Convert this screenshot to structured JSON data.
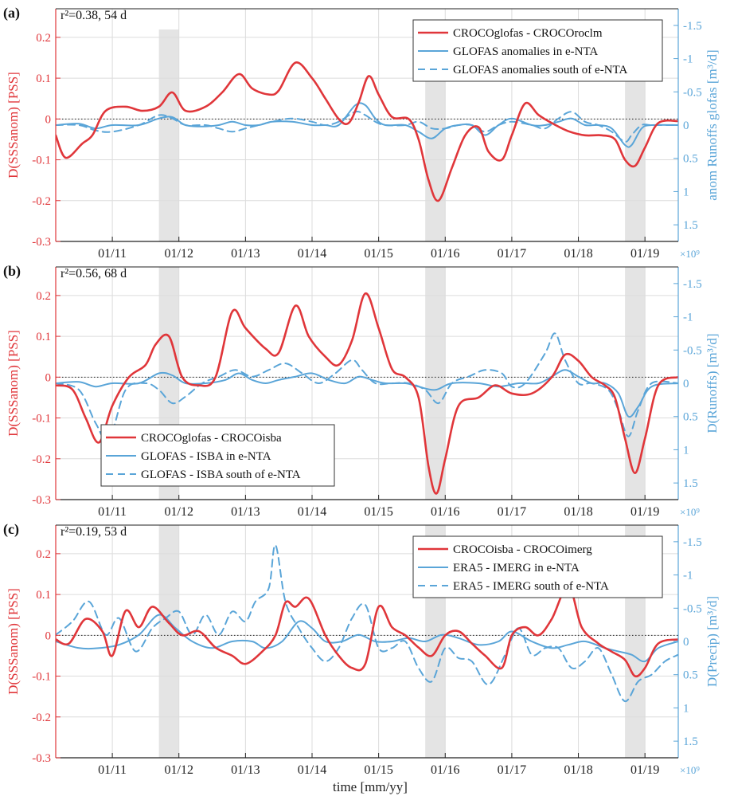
{
  "colors": {
    "red": "#e0363a",
    "blue": "#5aa5d8",
    "shade": "#e4e4e4",
    "grid": "#dcdcdc",
    "axis": "#222222"
  },
  "time_axis": {
    "xlabel": "time [mm/yy]",
    "tick_labels": [
      "01/11",
      "01/12",
      "01/13",
      "01/14",
      "01/15",
      "01/16",
      "01/17",
      "01/18",
      "01/19"
    ],
    "shaded_periods": [
      [
        2011.7,
        2012.0
      ],
      [
        2015.7,
        2016.0
      ],
      [
        2018.7,
        2019.0
      ]
    ],
    "xlim": [
      2010.15,
      2019.5
    ]
  },
  "chart_data": [
    {
      "type": "line",
      "panel_label": "(a)",
      "stats_label": "r²=0.38, 54 d",
      "ylabel_left": "D(SSSanom) [PSS]",
      "ylabel_right": "anom Runoffs glofas [m³/d]",
      "exponent_label": "×10⁹",
      "ylim_left": [
        -0.3,
        0.27
      ],
      "ylim_right_reversed": [
        1.75,
        -1.75
      ],
      "yticks_left": [
        0.2,
        0.1,
        0,
        -0.1,
        -0.2,
        -0.3
      ],
      "yticks_left_labels": [
        "0.2",
        "0.1",
        "0",
        "-0.1",
        "-0.2",
        "-0.3"
      ],
      "yticks_right": [
        -1.5,
        -1,
        -0.5,
        0,
        0.5,
        1,
        1.5
      ],
      "yticks_right_labels": [
        "-1.5",
        "-1",
        "-0.5",
        "0",
        "0.5",
        "1",
        "1.5"
      ],
      "legend_position": "top-right",
      "series": [
        {
          "name": "CROCOglofas - CROCOroclm",
          "axis": "left",
          "style": "solid",
          "color": "red",
          "x": [
            2010.15,
            2010.3,
            2010.55,
            2010.7,
            2010.9,
            2011.2,
            2011.45,
            2011.7,
            2011.9,
            2012.1,
            2012.4,
            2012.65,
            2012.9,
            2013.1,
            2013.35,
            2013.5,
            2013.75,
            2014.0,
            2014.2,
            2014.4,
            2014.55,
            2014.7,
            2014.85,
            2015.0,
            2015.2,
            2015.45,
            2015.6,
            2015.75,
            2015.9,
            2016.1,
            2016.3,
            2016.5,
            2016.65,
            2016.85,
            2017.0,
            2017.2,
            2017.4,
            2017.6,
            2017.85,
            2018.1,
            2018.35,
            2018.55,
            2018.7,
            2018.85,
            2019.0,
            2019.2,
            2019.5
          ],
          "y": [
            -0.04,
            -0.095,
            -0.06,
            -0.04,
            0.02,
            0.03,
            0.02,
            0.03,
            0.065,
            0.02,
            0.03,
            0.065,
            0.11,
            0.075,
            0.06,
            0.07,
            0.138,
            0.1,
            0.05,
            0.0,
            -0.01,
            0.04,
            0.105,
            0.06,
            0.005,
            0.0,
            -0.05,
            -0.15,
            -0.2,
            -0.12,
            -0.04,
            -0.02,
            -0.08,
            -0.1,
            -0.04,
            0.038,
            0.01,
            -0.01,
            -0.03,
            -0.04,
            -0.04,
            -0.05,
            -0.1,
            -0.115,
            -0.07,
            -0.01,
            -0.005
          ]
        },
        {
          "name": "GLOFAS anomalies in e-NTA",
          "axis": "right",
          "style": "solid",
          "color": "blue",
          "x": [
            2010.15,
            2010.5,
            2010.75,
            2011.0,
            2011.4,
            2011.7,
            2011.9,
            2012.1,
            2012.35,
            2012.6,
            2012.8,
            2013.0,
            2013.2,
            2013.4,
            2013.7,
            2014.0,
            2014.2,
            2014.4,
            2014.65,
            2014.8,
            2014.95,
            2015.1,
            2015.4,
            2015.6,
            2015.8,
            2016.0,
            2016.2,
            2016.4,
            2016.6,
            2016.8,
            2017.0,
            2017.3,
            2017.5,
            2017.7,
            2017.9,
            2018.1,
            2018.3,
            2018.5,
            2018.7,
            2018.8,
            2018.95,
            2019.1,
            2019.5
          ],
          "y": [
            0,
            -0.02,
            0.05,
            0,
            0,
            -0.1,
            -0.12,
            0,
            0.02,
            0,
            -0.05,
            0,
            0,
            -0.05,
            -0.05,
            0,
            0,
            0,
            -0.3,
            -0.3,
            -0.1,
            0,
            0,
            0.1,
            0.2,
            0.05,
            0,
            0,
            0.15,
            0,
            -0.1,
            0,
            0,
            -0.05,
            -0.1,
            0,
            0,
            0.05,
            0.3,
            0.3,
            0.05,
            0,
            0
          ]
        },
        {
          "name": "GLOFAS anomalies south of e-NTA",
          "axis": "right",
          "style": "dashed",
          "color": "blue",
          "x": [
            2010.15,
            2010.5,
            2010.75,
            2011.0,
            2011.4,
            2011.7,
            2011.9,
            2012.1,
            2012.4,
            2012.6,
            2012.8,
            2013.0,
            2013.2,
            2013.4,
            2013.7,
            2014.0,
            2014.2,
            2014.4,
            2014.65,
            2014.8,
            2014.95,
            2015.1,
            2015.4,
            2015.6,
            2015.8,
            2016.0,
            2016.2,
            2016.4,
            2016.6,
            2016.8,
            2017.0,
            2017.3,
            2017.5,
            2017.7,
            2017.9,
            2018.1,
            2018.3,
            2018.5,
            2018.7,
            2018.8,
            2018.95,
            2019.1,
            2019.5
          ],
          "y": [
            0,
            0,
            0.08,
            0.1,
            0,
            -0.15,
            -0.1,
            0,
            0,
            0.05,
            0.1,
            0.05,
            0,
            -0.05,
            -0.1,
            -0.05,
            0,
            -0.05,
            -0.2,
            -0.15,
            -0.05,
            0,
            0,
            -0.05,
            0.05,
            0.05,
            0,
            0,
            0.1,
            0,
            -0.05,
            0,
            0.05,
            -0.1,
            -0.2,
            -0.05,
            0,
            0.1,
            0.25,
            0.15,
            0,
            0,
            0
          ]
        }
      ]
    },
    {
      "type": "line",
      "panel_label": "(b)",
      "stats_label": "r²=0.56, 68 d",
      "ylabel_left": "D(SSSanom) [PSS]",
      "ylabel_right": "D(Runoffs) [m³/d]",
      "exponent_label": "×10⁹",
      "ylim_left": [
        -0.3,
        0.27
      ],
      "ylim_right_reversed": [
        1.75,
        -1.75
      ],
      "yticks_left": [
        0.2,
        0.1,
        0,
        -0.1,
        -0.2,
        -0.3
      ],
      "yticks_left_labels": [
        "0.2",
        "0.1",
        "0",
        "-0.1",
        "-0.2",
        "-0.3"
      ],
      "yticks_right": [
        -1.5,
        -1,
        -0.5,
        0,
        0.5,
        1,
        1.5
      ],
      "yticks_right_labels": [
        "-1.5",
        "-1",
        "-0.5",
        "0",
        "0.5",
        "1",
        "1.5"
      ],
      "legend_position": "bottom-left",
      "series": [
        {
          "name": "CROCOglofas - CROCOisba",
          "axis": "left",
          "style": "solid",
          "color": "red",
          "x": [
            2010.15,
            2010.4,
            2010.6,
            2010.8,
            2011.0,
            2011.25,
            2011.5,
            2011.65,
            2011.85,
            2012.05,
            2012.3,
            2012.55,
            2012.8,
            2013.0,
            2013.3,
            2013.5,
            2013.75,
            2013.95,
            2014.2,
            2014.4,
            2014.6,
            2014.8,
            2015.0,
            2015.2,
            2015.4,
            2015.6,
            2015.75,
            2015.87,
            2016.0,
            2016.2,
            2016.5,
            2016.75,
            2017.0,
            2017.3,
            2017.6,
            2017.8,
            2018.0,
            2018.2,
            2018.4,
            2018.55,
            2018.7,
            2018.85,
            2019.0,
            2019.2,
            2019.5
          ],
          "y": [
            -0.02,
            -0.03,
            -0.1,
            -0.16,
            -0.07,
            0.0,
            0.03,
            0.08,
            0.1,
            0.0,
            -0.02,
            0.0,
            0.16,
            0.12,
            0.07,
            0.06,
            0.175,
            0.1,
            0.05,
            0.03,
            0.09,
            0.205,
            0.12,
            0.02,
            0.0,
            -0.05,
            -0.22,
            -0.285,
            -0.2,
            -0.07,
            -0.05,
            -0.02,
            -0.04,
            -0.04,
            0.0,
            0.055,
            0.04,
            0.0,
            -0.02,
            -0.05,
            -0.15,
            -0.235,
            -0.15,
            -0.02,
            0.0
          ]
        },
        {
          "name": "GLOFAS - ISBA in e-NTA",
          "axis": "right",
          "style": "solid",
          "color": "blue",
          "x": [
            2010.15,
            2010.5,
            2010.75,
            2011.0,
            2011.4,
            2011.7,
            2011.9,
            2012.1,
            2012.4,
            2012.7,
            2012.9,
            2013.1,
            2013.3,
            2013.5,
            2013.75,
            2014.0,
            2014.25,
            2014.5,
            2014.7,
            2014.9,
            2015.1,
            2015.4,
            2015.6,
            2015.85,
            2016.1,
            2016.5,
            2016.8,
            2017.1,
            2017.4,
            2017.6,
            2017.8,
            2018.0,
            2018.2,
            2018.4,
            2018.6,
            2018.75,
            2018.9,
            2019.1,
            2019.5
          ],
          "y": [
            0,
            -0.02,
            0.05,
            0,
            0,
            -0.15,
            -0.12,
            0,
            0,
            -0.05,
            -0.15,
            -0.05,
            0,
            -0.05,
            -0.1,
            -0.15,
            -0.05,
            0,
            -0.1,
            -0.05,
            0,
            0,
            0.05,
            0.1,
            0,
            0,
            0.05,
            0,
            0,
            -0.1,
            -0.2,
            -0.1,
            0,
            0,
            0.15,
            0.5,
            0.35,
            0.05,
            0
          ]
        },
        {
          "name": "GLOFAS - ISBA south of e-NTA",
          "axis": "right",
          "style": "dashed",
          "color": "blue",
          "x": [
            2010.15,
            2010.5,
            2010.75,
            2010.95,
            2011.2,
            2011.5,
            2011.7,
            2011.9,
            2012.1,
            2012.35,
            2012.6,
            2012.85,
            2013.1,
            2013.35,
            2013.6,
            2013.85,
            2014.1,
            2014.35,
            2014.6,
            2014.75,
            2014.95,
            2015.2,
            2015.45,
            2015.7,
            2015.9,
            2016.1,
            2016.35,
            2016.6,
            2016.85,
            2017.0,
            2017.2,
            2017.5,
            2017.65,
            2017.8,
            2018.0,
            2018.2,
            2018.45,
            2018.6,
            2018.75,
            2018.9,
            2019.1,
            2019.5
          ],
          "y": [
            0,
            0.1,
            0.6,
            0.85,
            0.1,
            0,
            0.1,
            0.3,
            0.2,
            0,
            -0.1,
            -0.2,
            -0.1,
            -0.2,
            -0.3,
            -0.15,
            0,
            -0.15,
            -0.35,
            -0.2,
            0,
            0,
            0,
            0.1,
            0.3,
            0,
            -0.1,
            -0.2,
            -0.15,
            0.05,
            0,
            -0.45,
            -0.75,
            -0.35,
            0,
            0,
            0.1,
            0.4,
            0.8,
            0.4,
            0,
            0
          ]
        }
      ]
    },
    {
      "type": "line",
      "panel_label": "(c)",
      "stats_label": "r²=0.19, 53 d",
      "ylabel_left": "D(SSSanom) [PSS]",
      "ylabel_right": "D(Precip) [m³/d]",
      "exponent_label": "×10⁹",
      "ylim_left": [
        -0.3,
        0.27
      ],
      "ylim_right_reversed": [
        1.75,
        -1.75
      ],
      "yticks_left": [
        0.2,
        0.1,
        0,
        -0.1,
        -0.2,
        -0.3
      ],
      "yticks_left_labels": [
        "0.2",
        "0.1",
        "0",
        "-0.1",
        "-0.2",
        "-0.3"
      ],
      "yticks_right": [
        -1.5,
        -1,
        -0.5,
        0,
        0.5,
        1,
        1.5
      ],
      "yticks_right_labels": [
        "-1.5",
        "-1",
        "-0.5",
        "0",
        "0.5",
        "1",
        "1.5"
      ],
      "legend_position": "top-right",
      "series": [
        {
          "name": "CROCOisba - CROCOimerg",
          "axis": "left",
          "style": "solid",
          "color": "red",
          "x": [
            2010.15,
            2010.35,
            2010.6,
            2010.85,
            2011.0,
            2011.2,
            2011.4,
            2011.6,
            2011.85,
            2012.05,
            2012.3,
            2012.55,
            2012.8,
            2013.0,
            2013.25,
            2013.45,
            2013.6,
            2013.75,
            2013.95,
            2014.2,
            2014.4,
            2014.6,
            2014.8,
            2015.0,
            2015.2,
            2015.4,
            2015.6,
            2015.8,
            2016.0,
            2016.2,
            2016.4,
            2016.6,
            2016.85,
            2017.0,
            2017.2,
            2017.4,
            2017.6,
            2017.85,
            2018.05,
            2018.3,
            2018.5,
            2018.7,
            2018.85,
            2019.0,
            2019.2,
            2019.5
          ],
          "y": [
            -0.01,
            -0.02,
            0.04,
            0.01,
            -0.05,
            0.06,
            0.02,
            0.07,
            0.03,
            0.0,
            0.01,
            -0.03,
            -0.05,
            -0.07,
            -0.04,
            0.0,
            0.08,
            0.07,
            0.09,
            0.0,
            -0.05,
            -0.08,
            -0.07,
            0.07,
            0.02,
            0.0,
            -0.03,
            -0.05,
            0.0,
            0.01,
            -0.02,
            -0.05,
            -0.08,
            0.0,
            0.02,
            0.0,
            0.04,
            0.12,
            0.02,
            -0.02,
            -0.04,
            -0.06,
            -0.1,
            -0.08,
            -0.02,
            -0.01
          ]
        },
        {
          "name": "ERA5 - IMERG in e-NTA",
          "axis": "right",
          "style": "solid",
          "color": "blue",
          "x": [
            2010.15,
            2010.5,
            2010.8,
            2011.1,
            2011.4,
            2011.7,
            2011.95,
            2012.2,
            2012.5,
            2012.8,
            2013.1,
            2013.3,
            2013.55,
            2013.8,
            2014.0,
            2014.2,
            2014.45,
            2014.7,
            2014.95,
            2015.2,
            2015.45,
            2015.7,
            2015.95,
            2016.2,
            2016.5,
            2016.8,
            2017.0,
            2017.3,
            2017.6,
            2017.85,
            2018.1,
            2018.4,
            2018.6,
            2018.8,
            2019.0,
            2019.2,
            2019.5
          ],
          "y": [
            0,
            0.1,
            0.1,
            0.05,
            -0.1,
            -0.4,
            -0.2,
            0,
            0.1,
            0,
            0,
            0.1,
            0,
            -0.3,
            -0.2,
            0,
            0,
            -0.1,
            0,
            0,
            -0.05,
            0,
            -0.1,
            -0.05,
            0.05,
            0,
            -0.15,
            0,
            0.1,
            0.05,
            0,
            0.1,
            0.15,
            0.2,
            0.3,
            0.1,
            0
          ]
        },
        {
          "name": "ERA5 - IMERG south of e-NTA",
          "axis": "right",
          "style": "dashed",
          "color": "blue",
          "x": [
            2010.15,
            2010.4,
            2010.65,
            2010.9,
            2011.1,
            2011.35,
            2011.6,
            2011.8,
            2012.0,
            2012.2,
            2012.4,
            2012.6,
            2012.8,
            2013.0,
            2013.15,
            2013.35,
            2013.45,
            2013.6,
            2013.8,
            2014.0,
            2014.2,
            2014.4,
            2014.6,
            2014.8,
            2015.0,
            2015.2,
            2015.4,
            2015.6,
            2015.8,
            2016.0,
            2016.2,
            2016.4,
            2016.65,
            2016.9,
            2017.1,
            2017.3,
            2017.5,
            2017.7,
            2017.9,
            2018.1,
            2018.3,
            2018.5,
            2018.7,
            2018.9,
            2019.1,
            2019.3,
            2019.5
          ],
          "y": [
            -0.1,
            -0.3,
            -0.6,
            -0.1,
            -0.35,
            0.15,
            -0.2,
            -0.35,
            -0.45,
            -0.1,
            -0.4,
            -0.1,
            -0.45,
            -0.3,
            -0.6,
            -0.8,
            -1.45,
            -0.6,
            -0.2,
            0.1,
            0.3,
            0.1,
            -0.35,
            -0.55,
            0.1,
            0.1,
            0,
            0.4,
            0.6,
            0.1,
            0.25,
            0.3,
            0.65,
            0.2,
            -0.2,
            0.2,
            0.1,
            0.1,
            0.4,
            0.3,
            0.1,
            0.5,
            0.9,
            0.6,
            0.5,
            0.3,
            0.2
          ]
        }
      ]
    }
  ]
}
